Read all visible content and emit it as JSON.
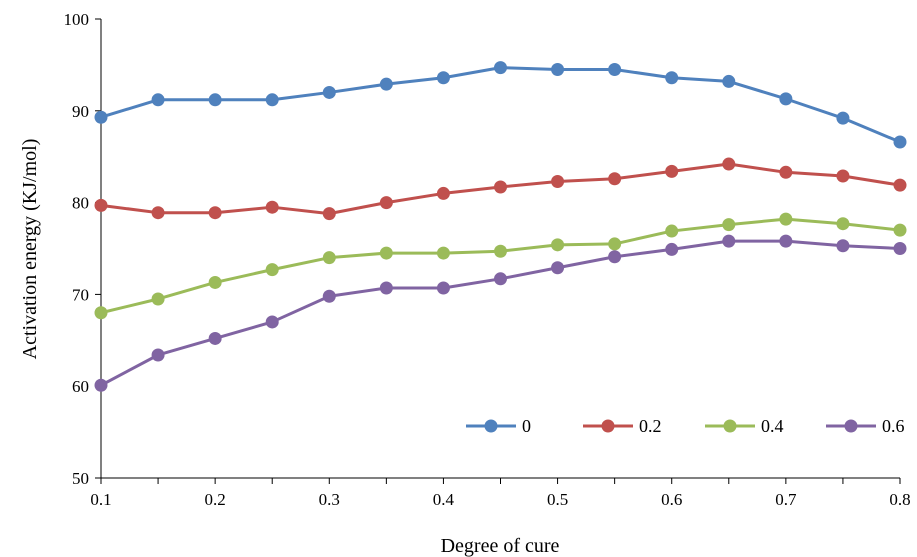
{
  "chart_data": {
    "type": "line",
    "title": "",
    "xlabel": "Degree of cure",
    "ylabel": "Activation energy  (KJ/mol)",
    "xlim": [
      0.1,
      0.8
    ],
    "ylim": [
      50,
      100
    ],
    "xticks": [
      "0.1",
      "0.2",
      "0.3",
      "0.4",
      "0.5",
      "0.6",
      "0.7",
      "0.8"
    ],
    "yticks": [
      "50",
      "60",
      "70",
      "80",
      "90",
      "100"
    ],
    "grid": false,
    "legend_position": "bottom-right",
    "x": [
      0.1,
      0.15,
      0.2,
      0.25,
      0.3,
      0.35,
      0.4,
      0.45,
      0.5,
      0.55,
      0.6,
      0.65,
      0.7,
      0.75,
      0.8
    ],
    "series": [
      {
        "name": "0",
        "color": "#4f81bd",
        "values": [
          89.3,
          91.2,
          91.2,
          91.2,
          92.0,
          92.9,
          93.6,
          94.7,
          94.5,
          94.5,
          93.6,
          93.2,
          91.3,
          89.2,
          86.6
        ]
      },
      {
        "name": "0.2",
        "color": "#c0504d",
        "values": [
          79.7,
          78.9,
          78.9,
          79.5,
          78.8,
          80.0,
          81.0,
          81.7,
          82.3,
          82.6,
          83.4,
          84.2,
          83.3,
          82.9,
          81.9
        ]
      },
      {
        "name": "0.4",
        "color": "#9bbb59",
        "values": [
          68.0,
          69.5,
          71.3,
          72.7,
          74.0,
          74.5,
          74.5,
          74.7,
          75.4,
          75.5,
          76.9,
          77.6,
          78.2,
          77.7,
          77.0
        ]
      },
      {
        "name": "0.6",
        "color": "#8064a2",
        "values": [
          60.1,
          63.4,
          65.2,
          67.0,
          69.8,
          70.7,
          70.7,
          71.7,
          72.9,
          74.1,
          74.9,
          75.8,
          75.8,
          75.3,
          75.0
        ]
      }
    ]
  }
}
